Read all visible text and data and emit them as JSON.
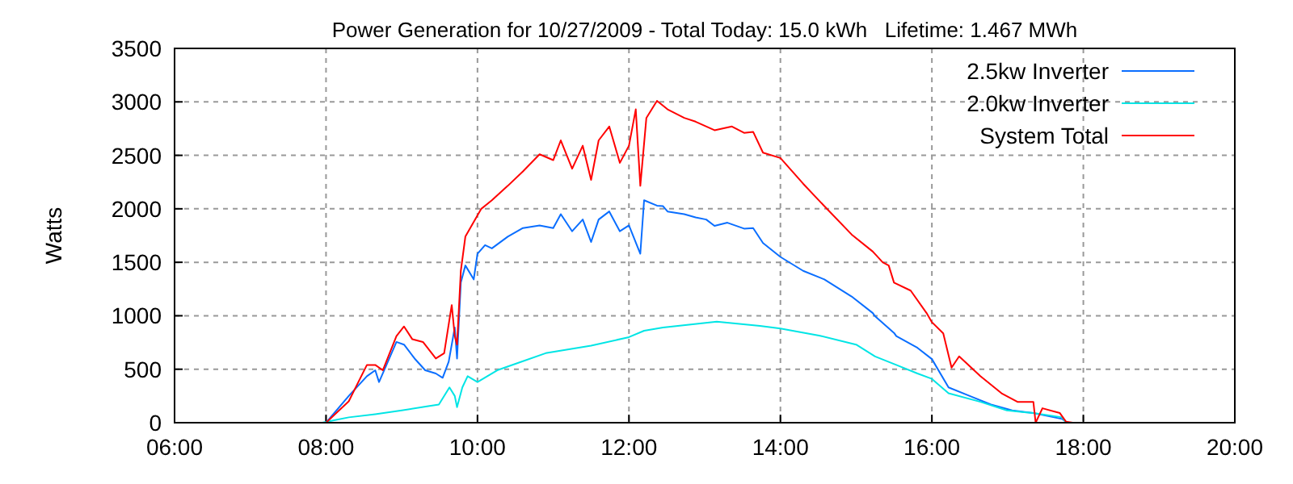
{
  "chart_data": {
    "type": "line",
    "title": "Power Generation for 10/27/2009 - Total Today: 15.0 kWh   Lifetime: 1.467 MWh",
    "ylabel": "Watts",
    "xlim": [
      6,
      20
    ],
    "xticks": [
      {
        "value": 6,
        "label": "06:00"
      },
      {
        "value": 8,
        "label": "08:00"
      },
      {
        "value": 10,
        "label": "10:00"
      },
      {
        "value": 12,
        "label": "12:00"
      },
      {
        "value": 14,
        "label": "14:00"
      },
      {
        "value": 16,
        "label": "16:00"
      },
      {
        "value": 18,
        "label": "18:00"
      },
      {
        "value": 20,
        "label": "20:00"
      }
    ],
    "ylim": [
      0,
      3500
    ],
    "yticks": [
      0,
      500,
      1000,
      1500,
      2000,
      2500,
      3000,
      3500
    ],
    "grid": true,
    "legend": "top right",
    "line_style": "solid",
    "series": [
      {
        "name": "2.5kw Inverter",
        "color": "#0a6eff",
        "x": [
          8.0,
          8.3,
          8.54,
          8.65,
          8.7,
          8.93,
          9.03,
          9.17,
          9.31,
          9.45,
          9.54,
          9.62,
          9.7,
          9.73,
          9.78,
          9.84,
          9.95,
          10.0,
          10.1,
          10.19,
          10.4,
          10.6,
          10.82,
          11.0,
          11.1,
          11.25,
          11.39,
          11.5,
          11.6,
          11.74,
          11.88,
          12.0,
          12.15,
          12.2,
          12.37,
          12.45,
          12.51,
          12.73,
          12.88,
          13.02,
          13.13,
          13.3,
          13.52,
          13.64,
          13.77,
          14.0,
          14.3,
          14.58,
          14.94,
          15.22,
          15.25,
          15.5,
          15.53,
          15.81,
          16.0,
          16.22,
          16.5,
          16.78,
          17.06,
          17.34,
          17.72,
          17.79
        ],
        "values": [
          0,
          250,
          435,
          490,
          380,
          755,
          730,
          600,
          490,
          460,
          420,
          570,
          890,
          600,
          1310,
          1470,
          1340,
          1580,
          1660,
          1630,
          1740,
          1820,
          1845,
          1820,
          1950,
          1790,
          1900,
          1690,
          1900,
          1975,
          1790,
          1845,
          1580,
          2080,
          2030,
          2025,
          1975,
          1950,
          1920,
          1900,
          1840,
          1870,
          1815,
          1820,
          1680,
          1550,
          1420,
          1340,
          1180,
          1025,
          995,
          840,
          810,
          700,
          595,
          330,
          250,
          170,
          115,
          90,
          35,
          0
        ]
      },
      {
        "name": "2.0kw Inverter",
        "color": "#00e5e5",
        "x": [
          7.95,
          8.12,
          8.3,
          8.65,
          9.0,
          9.35,
          9.49,
          9.63,
          9.7,
          9.73,
          9.8,
          9.87,
          10.0,
          10.26,
          10.54,
          10.9,
          11.5,
          12.0,
          12.2,
          12.45,
          13.16,
          13.73,
          14.0,
          14.51,
          15.0,
          15.25,
          15.53,
          15.81,
          16.0,
          16.22,
          16.64,
          16.99,
          17.34,
          17.72,
          17.77
        ],
        "values": [
          0,
          25,
          50,
          80,
          115,
          155,
          170,
          330,
          250,
          145,
          330,
          435,
          380,
          490,
          560,
          650,
          720,
          800,
          860,
          890,
          945,
          905,
          880,
          815,
          730,
          620,
          540,
          460,
          410,
          275,
          195,
          115,
          90,
          50,
          0
        ]
      },
      {
        "name": "System Total",
        "color": "#ff0000",
        "x": [
          8.0,
          8.3,
          8.54,
          8.65,
          8.75,
          8.93,
          9.03,
          9.14,
          9.28,
          9.45,
          9.56,
          9.66,
          9.7,
          9.73,
          9.78,
          9.84,
          10.05,
          10.19,
          10.4,
          10.6,
          10.82,
          11.0,
          11.1,
          11.25,
          11.39,
          11.5,
          11.6,
          11.74,
          11.88,
          12.0,
          12.09,
          12.15,
          12.23,
          12.37,
          12.51,
          12.73,
          12.88,
          13.13,
          13.36,
          13.52,
          13.64,
          13.77,
          14.0,
          14.3,
          14.58,
          14.94,
          15.22,
          15.35,
          15.43,
          15.5,
          15.72,
          15.93,
          16.0,
          16.15,
          16.26,
          16.36,
          16.64,
          16.92,
          17.13,
          17.34,
          17.37,
          17.46,
          17.69,
          17.77,
          17.86
        ],
        "values": [
          0,
          200,
          540,
          540,
          490,
          810,
          900,
          780,
          755,
          600,
          650,
          1100,
          810,
          730,
          1420,
          1740,
          2000,
          2080,
          2215,
          2350,
          2510,
          2455,
          2640,
          2375,
          2590,
          2270,
          2640,
          2770,
          2430,
          2590,
          2930,
          2215,
          2850,
          3010,
          2930,
          2850,
          2815,
          2735,
          2770,
          2710,
          2720,
          2525,
          2475,
          2235,
          2025,
          1760,
          1600,
          1500,
          1470,
          1310,
          1235,
          1025,
          940,
          835,
          515,
          620,
          435,
          275,
          195,
          195,
          0,
          135,
          90,
          10,
          0
        ]
      }
    ]
  }
}
